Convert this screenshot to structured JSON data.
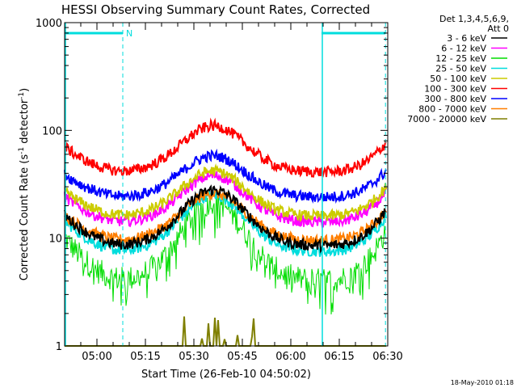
{
  "chart_data": {
    "type": "line",
    "title": "HESSI Observing Summary Count Rates, Corrected",
    "xlabel": "Start Time (26-Feb-10 04:50:02)",
    "ylabel_main": "Corrected Count Rate (s",
    "ylabel_sup1": "-1",
    "ylabel_mid": " detector",
    "ylabel_sup2": "-1",
    "ylabel_end": ")",
    "yscale": "log",
    "ylim": [
      1,
      1000
    ],
    "xlim_minutes": [
      0,
      100
    ],
    "x_ticks": [
      "05:00",
      "05:15",
      "05:30",
      "05:45",
      "06:00",
      "06:15",
      "06:30"
    ],
    "x_tick_minutes": [
      10,
      25,
      40,
      55,
      70,
      85,
      100
    ],
    "y_ticks": [
      "1",
      "10",
      "100",
      "1000"
    ],
    "y_tick_values": [
      1,
      10,
      100,
      1000
    ],
    "legend_header": [
      "Det 1,3,4,5,6,9,",
      "Att 0"
    ],
    "night_marker": "N",
    "vertical_lines_minutes": {
      "solid": [
        0,
        79.5
      ],
      "dashed": [
        18,
        99.3
      ]
    },
    "bars_minutes": [
      [
        0,
        18
      ],
      [
        79.5,
        99.3
      ]
    ],
    "series": [
      {
        "name": "3 - 6 keV",
        "color": "#000000",
        "min_level": 8.5,
        "peak_level": 28
      },
      {
        "name": "6 - 12 keV",
        "color": "#ff00ff",
        "min_level": 14,
        "peak_level": 38
      },
      {
        "name": "12 - 25 keV",
        "color": "#00dd00",
        "min_level": 4.0,
        "peak_level": 22
      },
      {
        "name": "25 - 50 keV",
        "color": "#00dddd",
        "min_level": 7.5,
        "peak_level": 25
      },
      {
        "name": "50 - 100 keV",
        "color": "#cccc00",
        "min_level": 16,
        "peak_level": 42
      },
      {
        "name": "100 - 300 keV",
        "color": "#ff0000",
        "min_level": 41,
        "peak_level": 110
      },
      {
        "name": "300 - 800 keV",
        "color": "#0000ff",
        "min_level": 24,
        "peak_level": 58
      },
      {
        "name": "800 - 7000 keV",
        "color": "#ff7f00",
        "min_level": 9.5,
        "peak_level": 26
      },
      {
        "name": "7000 - 20000 keV",
        "color": "#7f7f00",
        "min_level": 1.0,
        "peak_level": 1.9
      }
    ],
    "grid": false,
    "legend_position": "right"
  },
  "timestamp": "18-May-2010 01:18"
}
